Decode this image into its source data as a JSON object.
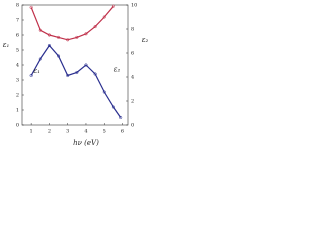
{
  "chart_data": {
    "type": "line",
    "x_label": "hν (eV)",
    "y_label": "ε₁",
    "y2_label": "ε₂",
    "xlim": [
      0.5,
      6.3
    ],
    "xticks": [
      1,
      2,
      3,
      4,
      5,
      6
    ],
    "ylim": [
      0,
      8
    ],
    "yticks": [
      0,
      1,
      2,
      3,
      4,
      5,
      6,
      7,
      8
    ],
    "y2lim": [
      0,
      10
    ],
    "y2ticks": [
      0,
      2,
      4,
      6,
      8,
      10
    ],
    "x": [
      1.0,
      1.5,
      2.0,
      2.5,
      3.0,
      3.5,
      4.0,
      4.5,
      5.0,
      5.5,
      5.9
    ],
    "series": [
      {
        "name": "ε₁",
        "color": "#2a2f8f",
        "values": [
          3.3,
          4.4,
          5.3,
          4.6,
          3.3,
          3.5,
          4.0,
          3.4,
          2.2,
          1.2,
          0.5
        ]
      },
      {
        "name": "ε₂",
        "color": "#c0304a",
        "axis": "y2",
        "values": [
          9.8,
          7.9,
          7.5,
          7.3,
          7.1,
          7.3,
          7.6,
          8.2,
          9.0,
          9.9,
          null
        ]
      }
    ],
    "annotations": [
      {
        "text": "ε₁",
        "x": 1.3,
        "y": 3.6
      },
      {
        "text": "ε₂",
        "x": 5.7,
        "y": 3.7
      }
    ]
  }
}
